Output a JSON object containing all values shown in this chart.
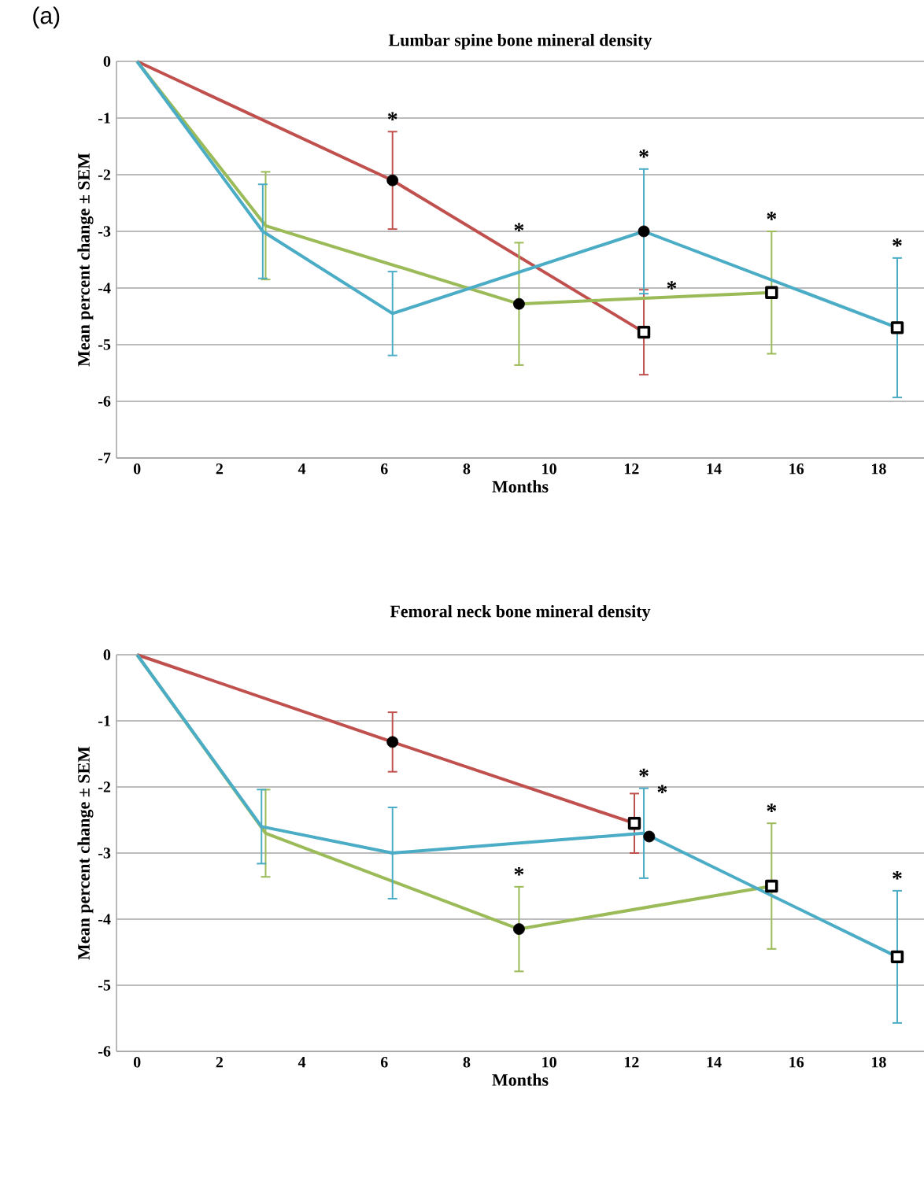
{
  "chart_data": [
    {
      "type": "line",
      "title": "Lumbar spine bone mineral density",
      "xlabel": "Months",
      "ylabel": "Mean percent change ± SEM",
      "xlim": [
        -0.5,
        19.1
      ],
      "ylim": [
        -7,
        0
      ],
      "xticks": [
        0,
        2,
        4,
        6,
        8,
        10,
        12,
        14,
        16,
        18
      ],
      "yticks": [
        -7,
        -6,
        -5,
        -4,
        -3,
        -2,
        -1,
        0
      ],
      "grid": "y",
      "series": [
        {
          "color": "#c0504d",
          "marker": "none",
          "x": [
            0,
            6.2,
            12.3
          ],
          "values": [
            0,
            -2.1,
            -4.78
          ],
          "errors": [
            null,
            0.86,
            0.75
          ]
        },
        {
          "color": "#9bbb59",
          "marker": "none",
          "x": [
            0,
            3.12,
            9.27,
            15.4
          ],
          "values": [
            0,
            -2.9,
            -4.28,
            -4.08
          ],
          "errors": [
            null,
            0.95,
            1.08,
            1.08
          ]
        },
        {
          "color": "#4bacc6",
          "marker": "none",
          "x": [
            0,
            3.05,
            6.2,
            12.3,
            18.45
          ],
          "values": [
            0,
            -3.0,
            -4.45,
            -3.0,
            -4.7
          ],
          "errors": [
            null,
            0.83,
            0.74,
            1.1,
            1.23
          ]
        },
        {
          "type": "scatter",
          "color": "#000000",
          "marker": "circle",
          "x": [
            6.2,
            9.27,
            12.3
          ],
          "values": [
            -2.1,
            -4.28,
            -3.0
          ]
        },
        {
          "type": "scatter",
          "color": "#000000",
          "marker": "square",
          "x": [
            12.3,
            15.4,
            18.45
          ],
          "values": [
            -4.78,
            -4.08,
            -4.7
          ]
        }
      ],
      "annotations": [
        "(a)",
        {
          "text": "*",
          "x": 6.2,
          "y": -1.24
        },
        {
          "text": "*",
          "x": 9.27,
          "y": -3.2
        },
        {
          "text": "*",
          "x": 12.3,
          "y": -1.9
        },
        {
          "text": "*",
          "x": 12.3,
          "y": -4.03
        },
        {
          "text": "*",
          "x": 15.4,
          "y": -3.0
        },
        {
          "text": "*",
          "x": 18.45,
          "y": -3.47
        }
      ]
    },
    {
      "type": "line",
      "title": "Femoral neck bone mineral density",
      "xlabel": "Months",
      "ylabel": "Mean percent change ± SEM",
      "xlim": [
        -0.5,
        19.1
      ],
      "ylim": [
        -6,
        0
      ],
      "xticks": [
        0,
        2,
        4,
        6,
        8,
        10,
        12,
        14,
        16,
        18
      ],
      "yticks": [
        -6,
        -5,
        -4,
        -3,
        -2,
        -1,
        0
      ],
      "grid": "y",
      "series": [
        {
          "color": "#c0504d",
          "marker": "none",
          "x": [
            0,
            6.2,
            12.07
          ],
          "values": [
            0,
            -1.32,
            -2.55
          ],
          "errors": [
            null,
            0.45,
            0.45
          ]
        },
        {
          "color": "#9bbb59",
          "marker": "none",
          "x": [
            0,
            3.12,
            9.27,
            15.4
          ],
          "values": [
            0,
            -2.7,
            -4.15,
            -3.5
          ],
          "errors": [
            null,
            0.66,
            0.64,
            0.95
          ]
        },
        {
          "color": "#4bacc6",
          "marker": "none",
          "x": [
            0,
            3.02,
            6.2,
            12.3,
            18.45
          ],
          "values": [
            0,
            -2.6,
            -3.0,
            -2.7,
            -4.57
          ],
          "errors": [
            null,
            0.56,
            0.69,
            0.68,
            1.0
          ]
        },
        {
          "type": "scatter",
          "color": "#000000",
          "marker": "circle",
          "x": [
            6.2,
            9.27,
            12.43
          ],
          "values": [
            -1.32,
            -4.15,
            -2.75
          ]
        },
        {
          "type": "scatter",
          "color": "#000000",
          "marker": "square",
          "x": [
            12.07,
            15.4,
            18.45
          ],
          "values": [
            -2.55,
            -3.5,
            -4.57
          ]
        }
      ],
      "annotations": [
        {
          "text": "*",
          "x": 12.3,
          "y": -2.02
        },
        {
          "text": "*",
          "x": 12.07,
          "y": -2.1
        },
        {
          "text": "*",
          "x": 9.27,
          "y": -3.51
        },
        {
          "text": "*",
          "x": 15.4,
          "y": -2.55
        },
        {
          "text": "*",
          "x": 18.45,
          "y": -3.57
        }
      ]
    }
  ]
}
